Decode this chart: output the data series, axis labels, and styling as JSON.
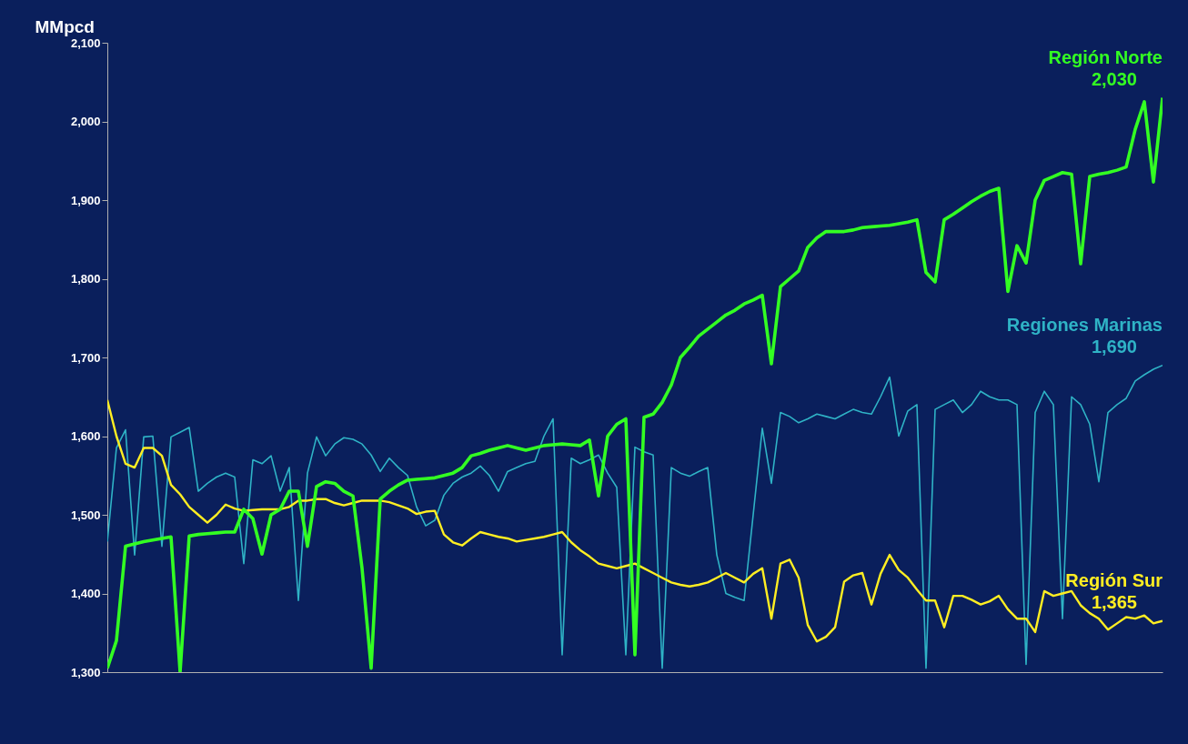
{
  "chart_data": {
    "type": "line",
    "ylabel": "MMpcd",
    "ylim": [
      1300,
      2100
    ],
    "yticks": [
      {
        "value": 1300,
        "label": "1,300"
      },
      {
        "value": 1400,
        "label": "1,400"
      },
      {
        "value": 1500,
        "label": "1,500"
      },
      {
        "value": 1600,
        "label": "1,600"
      },
      {
        "value": 1700,
        "label": "1,700"
      },
      {
        "value": 1800,
        "label": "1,800"
      },
      {
        "value": 1900,
        "label": "1,900"
      },
      {
        "value": 2000,
        "label": "2,000"
      },
      {
        "value": 2100,
        "label": "2,100"
      }
    ],
    "tick_labels": "y",
    "categories": [
      null,
      null,
      null,
      null,
      null,
      null,
      null,
      null,
      null,
      null,
      null,
      null,
      null,
      null,
      null,
      null,
      null,
      null,
      null,
      null,
      null,
      null,
      null,
      null,
      null,
      null,
      null,
      null,
      null,
      null,
      null,
      null,
      null,
      null,
      null,
      null,
      null,
      null,
      null,
      null,
      null,
      null,
      null,
      null,
      null,
      null,
      null,
      null,
      null,
      null,
      null,
      null,
      null,
      null,
      null,
      null,
      null,
      null,
      null,
      null,
      null,
      null,
      null,
      null,
      null,
      null,
      null,
      null,
      null,
      null,
      null,
      null,
      null,
      null,
      null,
      null,
      null,
      null,
      null,
      null,
      null,
      null,
      null,
      null,
      null,
      null,
      null,
      null,
      null,
      null,
      null,
      null,
      null,
      null,
      null,
      null,
      null,
      null,
      null,
      null,
      null,
      null,
      null,
      null,
      null,
      null,
      null,
      null,
      null,
      null,
      null,
      null,
      null,
      null,
      null,
      null,
      null
    ],
    "series": [
      {
        "name": "Regiones Marinas",
        "color": "#2fb3c6",
        "values": [
          1466,
          1585,
          1608,
          1449,
          1599,
          1600,
          1460,
          1599,
          1605,
          1611,
          1530,
          1540,
          1548,
          1553,
          1548,
          1438,
          1570,
          1565,
          1575,
          1530,
          1560,
          1391,
          1553,
          1599,
          1575,
          1590,
          1598,
          1596,
          1590,
          1576,
          1555,
          1572,
          1560,
          1550,
          1510,
          1486,
          1493,
          1525,
          1540,
          1548,
          1553,
          1562,
          1550,
          1530,
          1555,
          1560,
          1565,
          1568,
          1600,
          1622,
          1322,
          1572,
          1565,
          1570,
          1576,
          1553,
          1535,
          1322,
          1586,
          1580,
          1576,
          1305,
          1560,
          1553,
          1549,
          1555,
          1560,
          1449,
          1400,
          1395,
          1391,
          1500,
          1610,
          1540,
          1630,
          1625,
          1617,
          1622,
          1628,
          1625,
          1622,
          1628,
          1634,
          1630,
          1628,
          1650,
          1675,
          1600,
          1632,
          1640,
          1305,
          1634,
          1640,
          1646,
          1630,
          1640,
          1657,
          1650,
          1646,
          1646,
          1640,
          1310,
          1630,
          1657,
          1640,
          1368,
          1650,
          1640,
          1615,
          1542,
          1630,
          1640,
          1648,
          1670,
          1678,
          1685,
          1690
        ]
      },
      {
        "name": "Región Sur",
        "color": "#ffee22",
        "values": [
          1646,
          1600,
          1565,
          1560,
          1585,
          1585,
          1575,
          1538,
          1526,
          1510,
          1500,
          1490,
          1500,
          1513,
          1508,
          1505,
          1506,
          1507,
          1507,
          1507,
          1510,
          1518,
          1518,
          1520,
          1520,
          1515,
          1512,
          1515,
          1518,
          1518,
          1518,
          1516,
          1512,
          1508,
          1501,
          1504,
          1505,
          1475,
          1465,
          1461,
          1470,
          1478,
          1475,
          1472,
          1470,
          1466,
          1468,
          1470,
          1472,
          1475,
          1478,
          1465,
          1455,
          1447,
          1438,
          1435,
          1432,
          1435,
          1438,
          1432,
          1426,
          1420,
          1414,
          1411,
          1409,
          1411,
          1414,
          1420,
          1426,
          1420,
          1414,
          1425,
          1432,
          1368,
          1438,
          1443,
          1420,
          1360,
          1339,
          1345,
          1357,
          1415,
          1423,
          1426,
          1386,
          1425,
          1449,
          1430,
          1420,
          1405,
          1391,
          1391,
          1357,
          1397,
          1397,
          1392,
          1386,
          1390,
          1397,
          1380,
          1368,
          1368,
          1351,
          1403,
          1397,
          1400,
          1403,
          1385,
          1375,
          1368,
          1354,
          1362,
          1370,
          1368,
          1372,
          1362,
          1365
        ]
      },
      {
        "name": "Región Norte",
        "color": "#33ff22",
        "values": [
          1305,
          1340,
          1460,
          1463,
          1466,
          1468,
          1470,
          1472,
          1300,
          1473,
          1475,
          1476,
          1477,
          1478,
          1478,
          1507,
          1495,
          1450,
          1500,
          1507,
          1530,
          1530,
          1460,
          1536,
          1542,
          1540,
          1530,
          1524,
          1432,
          1305,
          1520,
          1530,
          1538,
          1544,
          1545,
          1546,
          1547,
          1550,
          1553,
          1560,
          1575,
          1578,
          1582,
          1585,
          1588,
          1585,
          1582,
          1585,
          1588,
          1589,
          1590,
          1589,
          1588,
          1595,
          1524,
          1600,
          1615,
          1622,
          1322,
          1624,
          1628,
          1643,
          1665,
          1700,
          1713,
          1727,
          1736,
          1745,
          1754,
          1760,
          1768,
          1773,
          1779,
          1692,
          1790,
          1800,
          1810,
          1840,
          1852,
          1860,
          1860,
          1860,
          1862,
          1865,
          1866,
          1867,
          1868,
          1870,
          1872,
          1875,
          1808,
          1796,
          1875,
          1882,
          1890,
          1898,
          1905,
          1911,
          1915,
          1784,
          1842,
          1820,
          1900,
          1925,
          1930,
          1935,
          1933,
          1819,
          1930,
          1933,
          1935,
          1938,
          1942,
          1990,
          2025,
          1923,
          2030
        ]
      }
    ],
    "annotations": [
      "1,690",
      "1,365",
      "2,030"
    ]
  }
}
